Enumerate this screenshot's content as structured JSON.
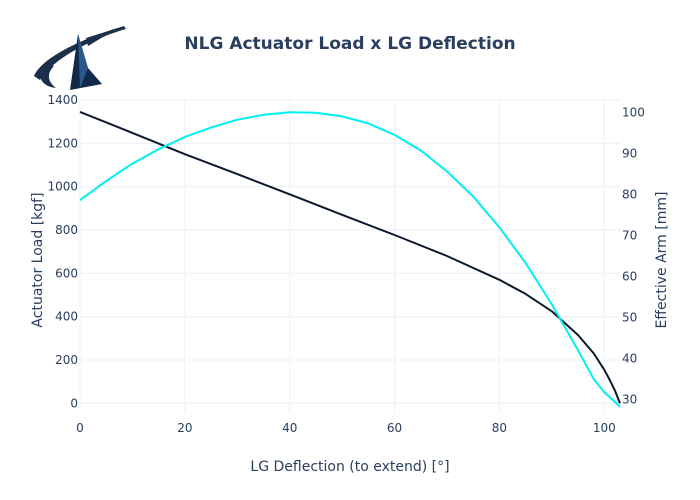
{
  "chart_data": {
    "type": "line",
    "title": "NLG Actuator Load x LG Deflection",
    "xlabel": "LG Deflection (to extend) [°]",
    "ylabel": "Actuator Load [kgf]",
    "y2label": "Effective Arm [mm]",
    "xlim": [
      0,
      103
    ],
    "ylim": [
      -40,
      1400
    ],
    "y2lim": [
      27,
      103
    ],
    "xticks": [
      "0",
      "20",
      "40",
      "60",
      "80",
      "100"
    ],
    "yticks": [
      "0",
      "200",
      "400",
      "600",
      "800",
      "1000",
      "1200",
      "1400"
    ],
    "y2ticks": [
      "30",
      "40",
      "50",
      "60",
      "70",
      "80",
      "90",
      "100"
    ],
    "grid": true,
    "legend": "none",
    "series": [
      {
        "axis": "y",
        "color": "#0b1a2e",
        "x": [
          0,
          10,
          20,
          30,
          40,
          50,
          60,
          70,
          80,
          85,
          90,
          95,
          98,
          100,
          101,
          102,
          103
        ],
        "y": [
          1345,
          1248,
          1150,
          1058,
          965,
          870,
          777,
          680,
          570,
          505,
          425,
          315,
          230,
          155,
          110,
          60,
          0
        ]
      },
      {
        "axis": "y2",
        "color": "#00f0f0",
        "x": [
          0,
          5,
          10,
          15,
          20,
          25,
          30,
          35,
          40,
          45,
          50,
          55,
          60,
          65,
          70,
          75,
          80,
          85,
          90,
          95,
          98,
          100,
          102,
          103
        ],
        "y": [
          78.6,
          83.3,
          87.5,
          91.0,
          94.0,
          96.3,
          98.2,
          99.4,
          100.0,
          99.9,
          99.0,
          97.3,
          94.5,
          90.7,
          85.6,
          79.5,
          72.0,
          63.3,
          53.2,
          42.0,
          35.0,
          31.8,
          29.5,
          28.2
        ]
      }
    ]
  }
}
